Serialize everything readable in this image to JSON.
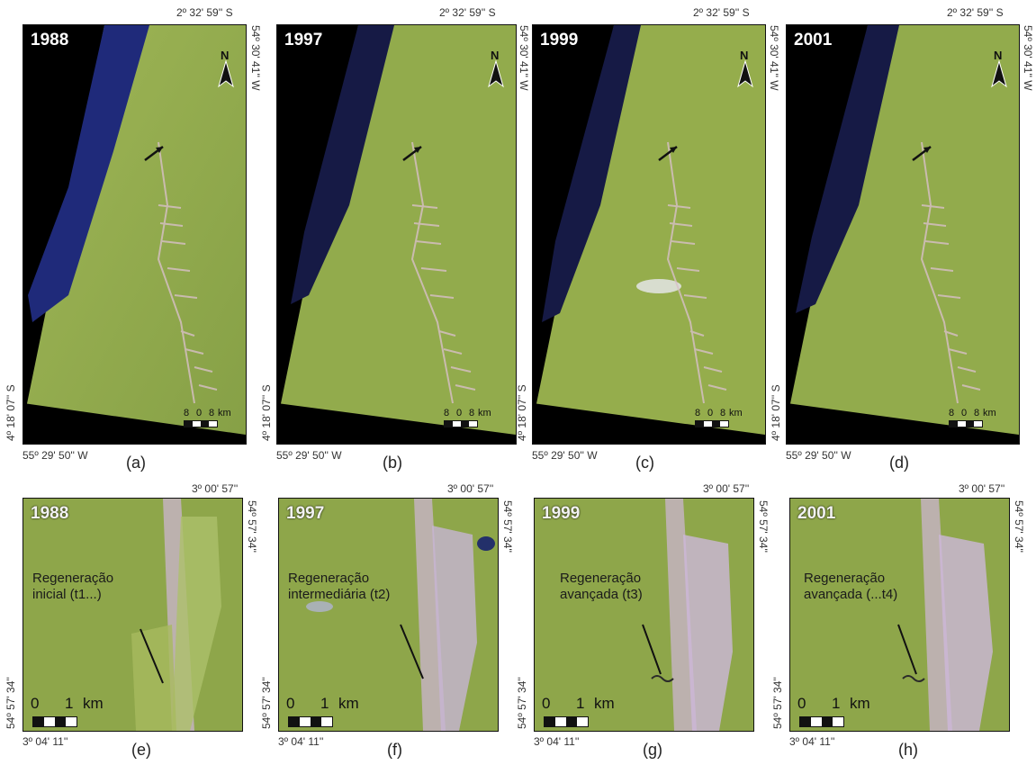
{
  "top_panels": [
    {
      "year": "1988",
      "label": "(a)"
    },
    {
      "year": "1997",
      "label": "(b)"
    },
    {
      "year": "1999",
      "label": "(c)"
    },
    {
      "year": "2001",
      "label": "(d)"
    }
  ],
  "bottom_panels": [
    {
      "year": "1988",
      "label": "(e)",
      "anno1": "Regeneração",
      "anno2": "inicial (t1...)"
    },
    {
      "year": "1997",
      "label": "(f)",
      "anno1": "Regeneração",
      "anno2": "intermediária (t2)"
    },
    {
      "year": "1999",
      "label": "(g)",
      "anno1": "Regeneração",
      "anno2": "avançada (t3)"
    },
    {
      "year": "2001",
      "label": "(h)",
      "anno1": "Regeneração",
      "anno2": "avançada (...t4)"
    }
  ],
  "top_coords": {
    "north": "2º 32' 59'' S",
    "east": "54º 30' 41'' W",
    "south": "4º 18' 07'' S",
    "west": "55º 29' 50'' W"
  },
  "bottom_coords": {
    "north": "3º 00' 57''",
    "east": "54º 57' 34''",
    "south": "3º 04' 11''",
    "west": "54º 57' 34''"
  },
  "top_scale": {
    "a": "8",
    "b": "0",
    "c": "8",
    "unit": "km"
  },
  "bottom_scale": {
    "a": "0",
    "b": "1",
    "unit": "km"
  },
  "north_letter": "N",
  "colors": {
    "forest": "#8aa24a",
    "water": "#1b1f5e",
    "deforest": "#d6b7c9"
  }
}
